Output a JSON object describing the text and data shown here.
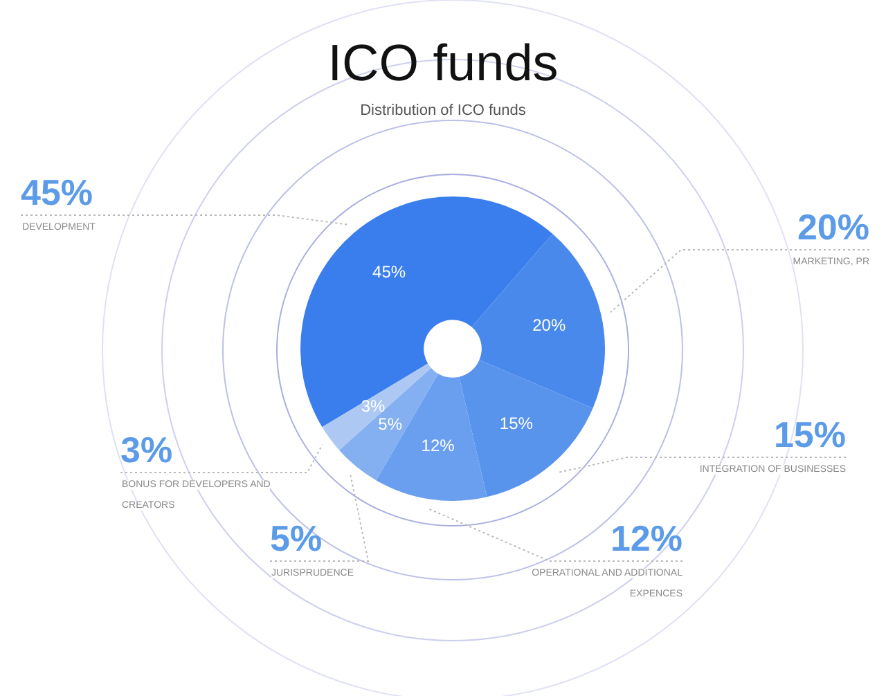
{
  "chart_data": {
    "type": "donut",
    "title": "ICO funds",
    "subtitle": "Distribution of ICO funds",
    "categories": [
      "DEVELOPMENT",
      "MARKETING, PR",
      "INTEGRATION OF BUSINESSES",
      "OPERATIONAL AND ADDITIONAL EXPENCES",
      "JURISPRUDENCE",
      "BONUS FOR DEVELOPERS AND CREATORS"
    ],
    "values": [
      45,
      20,
      15,
      12,
      5,
      3
    ],
    "colors": [
      "#3a7eee",
      "#4a89ec",
      "#5893ec",
      "#6a9fef",
      "#84aff1",
      "#aec8f4"
    ],
    "value_labels": [
      "45%",
      "20%",
      "15%",
      "12%",
      "5%",
      "3%"
    ]
  }
}
